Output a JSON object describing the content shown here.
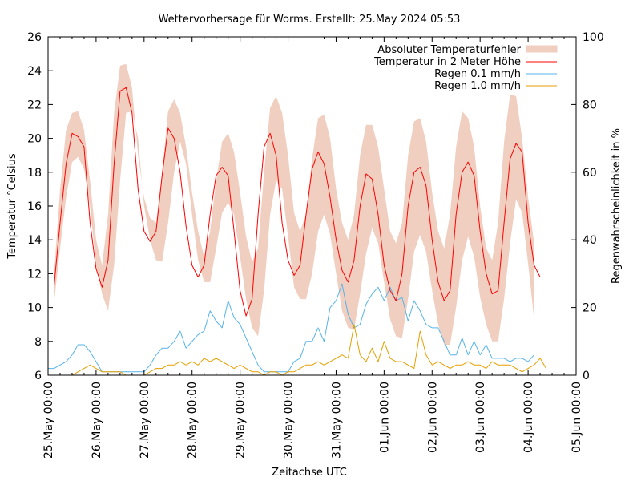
{
  "chart_data": {
    "type": "line",
    "title": "Wettervorhersage für Worms. Erstellt: 25.May 2024 05:53",
    "xlabel": "Zeitachse UTC",
    "ylabel": "Temperatur °Celsius",
    "y2label": "Regenwahrscheinlichkeit in %",
    "ylim": [
      6,
      26
    ],
    "y2lim": [
      0,
      100
    ],
    "xlim_days": [
      0,
      11
    ],
    "grid": false,
    "legend_position": "top-right",
    "x_tick_labels": [
      "25.May 00:00",
      "26.May 00:00",
      "27.May 00:00",
      "28.May 00:00",
      "29.May 00:00",
      "30.May 00:00",
      "31.May 00:00",
      "01.Jun 00:00",
      "02.Jun 00:00",
      "03.Jun 00:00",
      "04.Jun 00:00",
      "05.Jun 00:00"
    ],
    "y_tick_labels": [
      "6",
      "8",
      "10",
      "12",
      "14",
      "16",
      "18",
      "20",
      "22",
      "24",
      "26"
    ],
    "y2_tick_labels": [
      "0",
      "20",
      "40",
      "60",
      "80",
      "100"
    ],
    "x_step_hours": 3,
    "x_start_hours": 3,
    "series": [
      {
        "name": "Absoluter Temperaturfehler",
        "kind": "band",
        "color": "#f0cfc0",
        "lower": [
          10.3,
          13.5,
          16.5,
          18.6,
          18.9,
          18.2,
          16.0,
          12.5,
          10.8,
          9.8,
          12.5,
          17.5,
          21.5,
          21.6,
          20.0,
          16.0,
          14.0,
          12.8,
          12.7,
          15.0,
          18.0,
          19.8,
          18.5,
          15.5,
          12.8,
          11.5,
          11.5,
          13.5,
          15.6,
          16.2,
          15.5,
          13.0,
          10.5,
          8.8,
          8.3,
          11.0,
          15.5,
          17.5,
          17.0,
          14.2,
          11.2,
          10.5,
          10.5,
          12.0,
          14.5,
          15.5,
          14.3,
          12.0,
          9.8,
          8.8,
          8.7,
          10.8,
          13.2,
          14.7,
          13.8,
          11.5,
          9.3,
          8.3,
          8.2,
          10.5,
          13.3,
          14.3,
          13.3,
          11.0,
          9.0,
          7.8,
          7.8,
          10.0,
          12.8,
          14.2,
          13.0,
          10.6,
          9.0,
          8.0,
          8.0,
          10.5,
          13.8,
          16.4,
          15.6,
          12.6,
          9.3
        ],
        "upper": [
          12.0,
          17.0,
          20.5,
          21.5,
          21.6,
          20.5,
          17.5,
          14.0,
          12.5,
          15.5,
          21.5,
          24.3,
          24.4,
          23.0,
          19.0,
          16.5,
          15.3,
          15.0,
          18.0,
          21.6,
          22.3,
          21.5,
          19.5,
          16.8,
          14.5,
          13.0,
          14.5,
          17.5,
          19.8,
          20.3,
          19.2,
          16.8,
          14.2,
          12.7,
          13.5,
          18.0,
          21.8,
          22.5,
          21.5,
          19.0,
          15.6,
          14.5,
          15.5,
          18.8,
          21.2,
          21.4,
          20.0,
          17.0,
          15.0,
          14.0,
          15.5,
          19.0,
          20.8,
          20.8,
          19.5,
          17.0,
          14.5,
          13.8,
          15.0,
          19.0,
          21.0,
          21.2,
          19.8,
          16.8,
          14.5,
          13.5,
          15.5,
          19.5,
          21.6,
          21.2,
          19.5,
          16.0,
          13.5,
          12.8,
          15.0,
          19.8,
          22.6,
          22.5,
          20.0,
          16.5,
          13.8
        ]
      },
      {
        "name": "Temperatur in 2 Meter Höhe",
        "kind": "line",
        "color": "#ff0000",
        "values": [
          11.3,
          15.0,
          18.5,
          20.3,
          20.1,
          19.5,
          15.0,
          12.3,
          11.2,
          12.8,
          18.5,
          22.8,
          23.0,
          21.5,
          17.0,
          14.5,
          13.9,
          14.5,
          17.8,
          20.6,
          20.0,
          18.0,
          14.8,
          12.5,
          11.8,
          12.5,
          15.5,
          17.8,
          18.3,
          17.8,
          14.5,
          11.0,
          9.5,
          10.5,
          15.5,
          19.5,
          20.3,
          19.0,
          15.0,
          12.8,
          11.9,
          12.5,
          15.5,
          18.2,
          19.2,
          18.5,
          16.5,
          14.0,
          12.2,
          11.5,
          12.8,
          16.0,
          17.9,
          17.6,
          15.5,
          12.5,
          11.0,
          10.4,
          12.0,
          16.0,
          18.0,
          18.3,
          17.2,
          14.0,
          11.5,
          10.4,
          11.0,
          15.5,
          18.0,
          18.6,
          17.8,
          14.5,
          12.0,
          10.8,
          11.0,
          15.0,
          18.8,
          19.7,
          19.2,
          15.0,
          12.5,
          11.8
        ],
        "start_hours": 3
      },
      {
        "name": "Regen 0.1 mm/h",
        "kind": "line",
        "axis": "right",
        "color": "#56b4e9",
        "values": [
          2,
          2,
          3,
          4,
          6,
          9,
          9,
          7,
          4,
          1,
          1,
          1,
          1,
          1,
          1,
          1,
          1,
          3,
          6,
          8,
          8,
          10,
          13,
          8,
          10,
          12,
          13,
          19,
          16,
          14,
          22,
          17,
          15,
          11,
          7,
          3,
          1,
          1,
          1,
          1,
          1,
          4,
          5,
          10,
          10,
          14,
          10,
          20,
          22,
          27,
          18,
          14,
          15,
          21,
          24,
          26,
          22,
          26,
          22,
          23,
          16,
          22,
          19,
          15,
          14,
          14,
          10,
          6,
          6,
          11,
          6,
          10,
          6,
          9,
          5,
          5,
          5,
          4,
          5,
          5,
          4,
          6
        ],
        "start_hours": 0,
        "step_hours": 3
      },
      {
        "name": "Regen 1.0 mm/h",
        "kind": "line",
        "axis": "right",
        "color": "#e69f00",
        "values": [
          0,
          0,
          0,
          1,
          2,
          3,
          2,
          1,
          1,
          1,
          1,
          0,
          0,
          0,
          0,
          1,
          2,
          2,
          3,
          3,
          4,
          3,
          4,
          3,
          5,
          4,
          5,
          4,
          3,
          2,
          3,
          2,
          1,
          1,
          0,
          1,
          1,
          0,
          1,
          1,
          2,
          3,
          3,
          4,
          3,
          4,
          5,
          6,
          5,
          15,
          6,
          4,
          8,
          4,
          10,
          5,
          4,
          4,
          3,
          2,
          13,
          6,
          3,
          4,
          3,
          2,
          3,
          3,
          4,
          3,
          3,
          2,
          4,
          3,
          3,
          3,
          2,
          1,
          2,
          3,
          5,
          2
        ],
        "start_hours": 6,
        "step_hours": 3
      }
    ]
  }
}
